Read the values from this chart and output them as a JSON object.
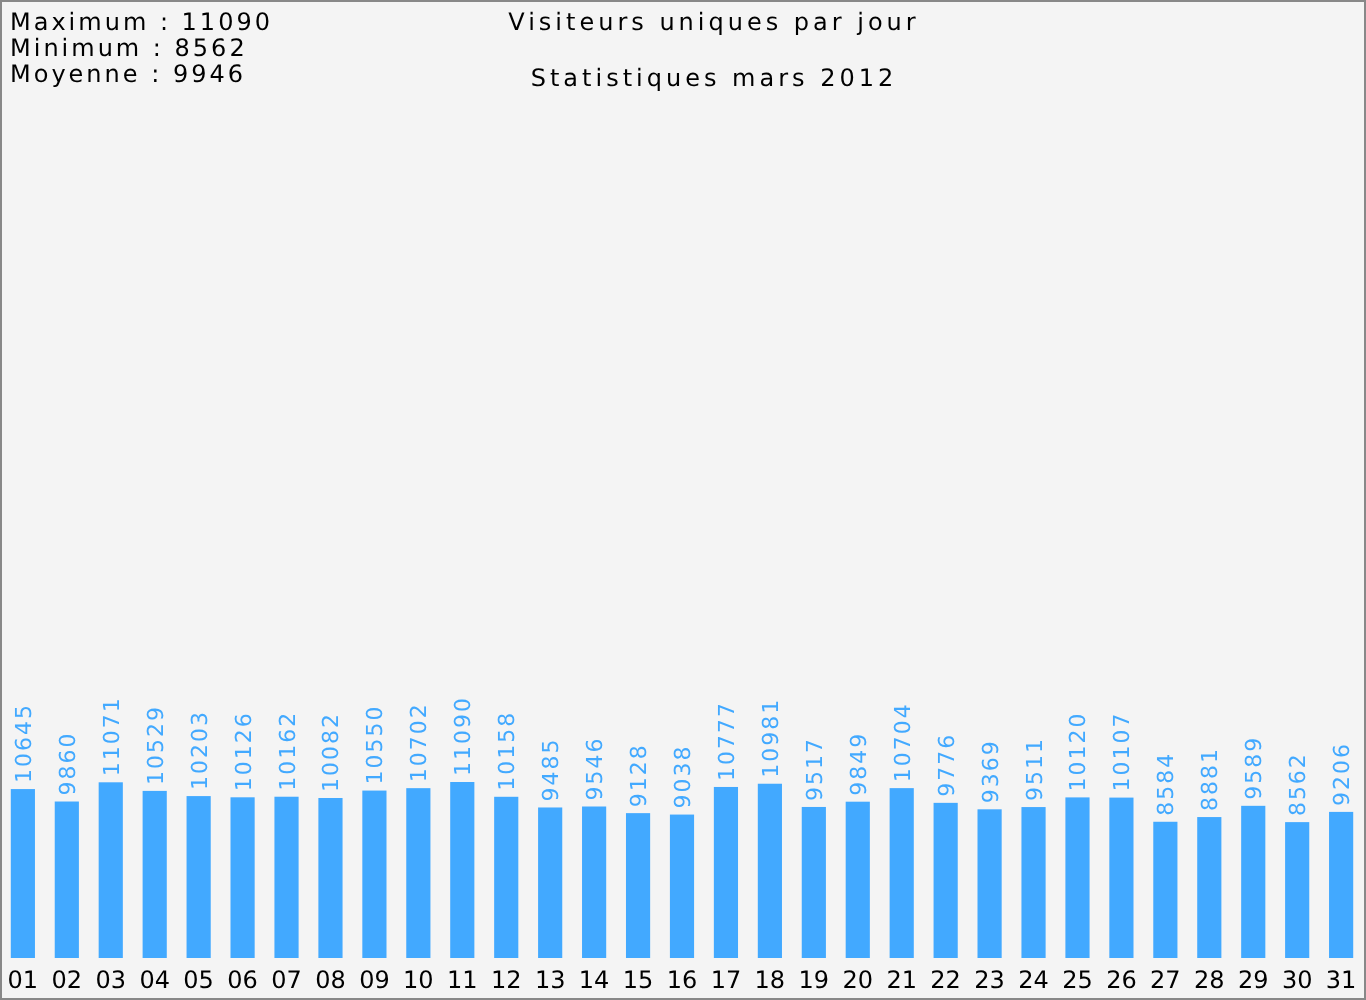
{
  "chart_data": {
    "type": "bar",
    "title": "Visiteurs uniques par jour",
    "subtitle": "Statistiques mars 2012",
    "annotations": [
      "Maximum : 11090",
      "Minimum : 8562",
      "Moyenne : 9946"
    ],
    "categories": [
      "01",
      "02",
      "03",
      "04",
      "05",
      "06",
      "07",
      "08",
      "09",
      "10",
      "11",
      "12",
      "13",
      "14",
      "15",
      "16",
      "17",
      "18",
      "19",
      "20",
      "21",
      "22",
      "23",
      "24",
      "25",
      "26",
      "27",
      "28",
      "29",
      "30",
      "31"
    ],
    "values": [
      10645,
      9860,
      11071,
      10529,
      10203,
      10126,
      10162,
      10082,
      10550,
      10702,
      11090,
      10158,
      9485,
      9546,
      9128,
      9038,
      10777,
      10981,
      9517,
      9849,
      10704,
      9776,
      9369,
      9511,
      10120,
      10107,
      8584,
      8881,
      9589,
      8562,
      9206
    ],
    "color": "#42a9ff",
    "data_labels": true
  }
}
